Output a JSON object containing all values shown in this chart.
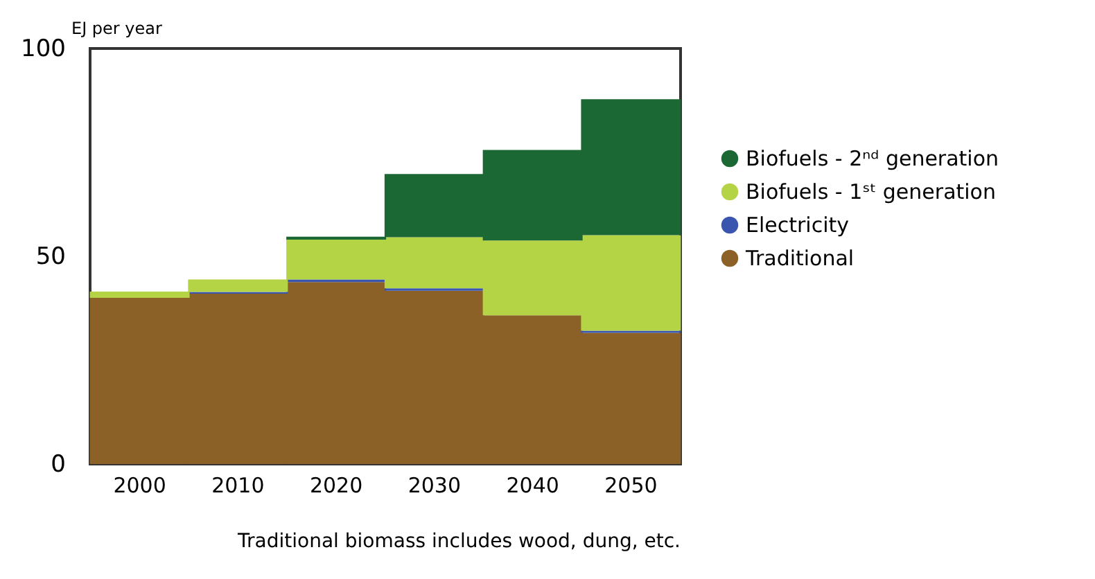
{
  "chart_data": {
    "type": "bar",
    "stacked": true,
    "ylabel": "EJ per year",
    "categories": [
      "2000",
      "2010",
      "2020",
      "2030",
      "2040",
      "2050"
    ],
    "series": [
      {
        "name": "Traditional",
        "color": "#8c6128",
        "values": [
          40,
          41,
          43.8,
          41.7,
          35.8,
          31.6
        ]
      },
      {
        "name": "Electricity",
        "color": "#3a55b0",
        "values": [
          0,
          0.4,
          0.6,
          0.6,
          0,
          0.5
        ]
      },
      {
        "name": "Biofuels - 1ˢᵗ generation",
        "color": "#b5d445",
        "values": [
          1.5,
          3,
          9.6,
          12.3,
          18,
          23
        ]
      },
      {
        "name": "Biofuels - 2ⁿᵈ generation",
        "color": "#1c6834",
        "values": [
          0,
          0,
          0.7,
          15.2,
          21.8,
          32.7
        ]
      }
    ],
    "ylim": [
      0,
      100
    ],
    "yticks": [
      0,
      50,
      100
    ],
    "grid": false,
    "legend": "right",
    "annotations": [
      "Traditional biomass includes wood, dung, etc."
    ]
  }
}
